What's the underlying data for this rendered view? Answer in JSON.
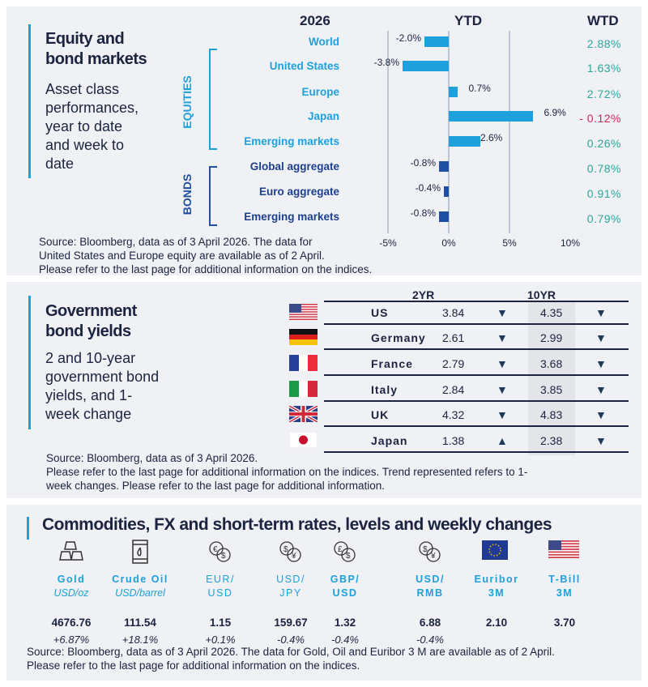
{
  "equity": {
    "title_line1": "Equity and",
    "title_line2": "bond markets",
    "subtitle": [
      "Asset class",
      "performances,",
      "year to date",
      "and week to",
      "date"
    ],
    "year_header": "2026",
    "ytd_header": "YTD",
    "wtd_header": "WTD",
    "group_equities": "EQUITIES",
    "group_bonds": "BONDS",
    "source": [
      "Source: Bloomberg, data as of 3 April 2026. The data for",
      "United States and Europe equity are available as of 2 April.",
      "Please refer to the last page for additional information on the indices."
    ],
    "colors": {
      "equity_bar": "#1ea0dc",
      "bond_bar": "#1e4fa0",
      "wtd_positive": "#2aa79b",
      "wtd_negative": "#d6245a"
    }
  },
  "chart_data": {
    "type": "bar",
    "orientation": "horizontal",
    "xlim": [
      -5,
      10
    ],
    "xticks": [
      "-5%",
      "0%",
      "5%",
      "10%"
    ],
    "grid": true,
    "categories": [
      "World",
      "United States",
      "Europe",
      "Japan",
      "Emerging  markets",
      "Global aggregate",
      "Euro aggregate",
      "Emerging  markets"
    ],
    "groups": [
      "equity",
      "equity",
      "equity",
      "equity",
      "equity",
      "bond",
      "bond",
      "bond"
    ],
    "values": [
      -2.0,
      -3.8,
      0.7,
      6.9,
      2.6,
      -0.8,
      -0.4,
      -0.8
    ],
    "value_labels": [
      "-2.0%",
      "-3.8%",
      "0.7%",
      "6.9%",
      "2.6%",
      "-0.8%",
      "-0.4%",
      "-0.8%"
    ],
    "wtd": [
      "2.88%",
      "1.63%",
      "2.72%",
      "- 0.12%",
      "0.26%",
      "0.78%",
      "0.91%",
      "0.79%"
    ],
    "wtd_values": [
      2.88,
      1.63,
      2.72,
      -0.12,
      0.26,
      0.78,
      0.91,
      0.79
    ]
  },
  "bonds": {
    "title_line1": "Government",
    "title_line2": "bond yields",
    "subtitle": [
      "2 and 10-year",
      "government bond",
      "yields, and 1-",
      "week change"
    ],
    "col_2yr": "2YR",
    "col_10yr": "10YR",
    "rows": [
      {
        "country": "US",
        "flag": "us-flag",
        "y2": "3.84",
        "t2": "down",
        "y10": "4.35",
        "t10": "down"
      },
      {
        "country": "Germany",
        "flag": "germany-flag",
        "y2": "2.61",
        "t2": "down",
        "y10": "2.99",
        "t10": "down"
      },
      {
        "country": "France",
        "flag": "france-flag",
        "y2": "2.79",
        "t2": "down",
        "y10": "3.68",
        "t10": "down"
      },
      {
        "country": "Italy",
        "flag": "italy-flag",
        "y2": "2.84",
        "t2": "down",
        "y10": "3.85",
        "t10": "down"
      },
      {
        "country": "UK",
        "flag": "uk-flag",
        "y2": "4.32",
        "t2": "down",
        "y10": "4.83",
        "t10": "down"
      },
      {
        "country": "Japan",
        "flag": "japan-flag",
        "y2": "1.38",
        "t2": "up",
        "y10": "2.38",
        "t10": "down"
      }
    ],
    "arrows": {
      "up": "▲",
      "down": "▼"
    },
    "source": [
      "Source: Bloomberg, data as of 3 April 2026.",
      "Please refer to the last page for additional information on the indices. Trend represented refers to 1-",
      "week changes. Please refer to the last page for additional information."
    ]
  },
  "commod": {
    "title": "Commodities, FX and short-term rates, levels and weekly changes",
    "items": [
      {
        "l1": "Gold",
        "l2": "USD/oz",
        "icon": "gold-bars-icon",
        "value": "4676.76",
        "change": "+6.87%"
      },
      {
        "l1": "Crude Oil",
        "l2": "USD/barrel",
        "icon": "oil-barrel-icon",
        "value": "111.54",
        "change": "+18.1%"
      },
      {
        "l1": "EUR/",
        "l2": "USD",
        "icon": "euro-dollar-exchange-icon",
        "value": "1.15",
        "change": "+0.1%"
      },
      {
        "l1": "USD/",
        "l2": "JPY",
        "icon": "dollar-yen-exchange-icon",
        "value": "159.67",
        "change": "-0.4%"
      },
      {
        "l1": "GBP/",
        "l2": "USD",
        "icon": "pound-dollar-exchange-icon",
        "value": "1.32",
        "change": "-0.4%"
      },
      {
        "l1": "USD/",
        "l2": "RMB",
        "icon": "dollar-yuan-exchange-icon",
        "value": "6.88",
        "change": "-0.4%"
      },
      {
        "l1": "Euribor",
        "l2": "3M",
        "icon": "eu-flag-icon",
        "value": "2.10",
        "change": ""
      },
      {
        "l1": "T-Bill",
        "l2": "3M",
        "icon": "us-flag-icon",
        "value": "3.70",
        "change": ""
      }
    ],
    "source": [
      "Source: Bloomberg, data as of 3 April 2026. The data for Gold, Oil and Euribor 3 M are available as of 2 April.",
      "Please refer to the last page for additional information on the indices."
    ]
  }
}
